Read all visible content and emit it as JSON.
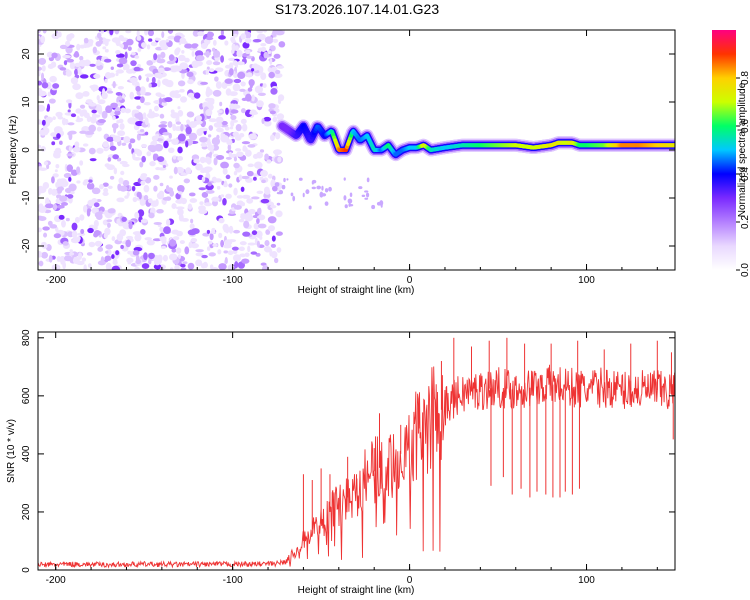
{
  "title": "S173.2026.107.14.01.G23",
  "chart_data": [
    {
      "type": "heatmap",
      "xlabel": "Height of straight line (km)",
      "ylabel": "Frequency (Hz)",
      "xlim": [
        -210,
        150
      ],
      "ylim": [
        -25,
        25
      ],
      "x_ticks": [
        -200,
        -100,
        0,
        100
      ],
      "x_tick_labels": [
        "-200",
        "-100",
        "0",
        "100"
      ],
      "y_ticks": [
        -20,
        -10,
        0,
        10,
        20
      ],
      "y_tick_labels": [
        "-20",
        "-10",
        "0",
        "10",
        "20"
      ],
      "noise_region": {
        "x_from": -210,
        "x_to": -72,
        "typical_amplitude": 0.05
      },
      "ridge": {
        "x": [
          -72,
          -68,
          -64,
          -60,
          -56,
          -52,
          -48,
          -44,
          -40,
          -36,
          -32,
          -28,
          -24,
          -20,
          -16,
          -12,
          -8,
          -4,
          0,
          4,
          8,
          12,
          20,
          30,
          40,
          50,
          60,
          70,
          80,
          84,
          88,
          92,
          96,
          100,
          110,
          120,
          130,
          140,
          150
        ],
        "frequency": [
          5,
          4,
          3,
          5,
          2,
          5,
          3,
          4,
          0,
          0,
          4,
          2,
          3,
          0,
          0,
          1,
          -1,
          0,
          0.5,
          0.5,
          1,
          0,
          0.5,
          1,
          1,
          1,
          1,
          0.5,
          1,
          1.5,
          1.5,
          1.5,
          1,
          1,
          1,
          1,
          1,
          1,
          1
        ],
        "amplitude": [
          0.3,
          0.3,
          0.35,
          0.4,
          0.35,
          0.45,
          0.4,
          0.55,
          0.85,
          0.9,
          0.5,
          0.45,
          0.5,
          0.55,
          0.45,
          0.6,
          0.45,
          0.45,
          0.5,
          0.5,
          0.75,
          0.55,
          0.5,
          0.55,
          0.6,
          0.65,
          0.7,
          0.7,
          0.75,
          0.75,
          0.7,
          0.75,
          0.6,
          0.6,
          0.65,
          0.85,
          0.85,
          0.8,
          0.75
        ]
      },
      "colorbar": {
        "label": "Normalized spectral amplitude",
        "ticks": [
          0.0,
          0.2,
          0.4,
          0.6,
          0.8
        ],
        "tick_labels": [
          "0.0",
          "0.2",
          "0.4",
          "0.6",
          "0.8"
        ],
        "range": [
          0,
          1
        ],
        "colormap": [
          "#ffffff",
          "#e9d8ff",
          "#b480ff",
          "#7a2aff",
          "#0000ff",
          "#00c8ff",
          "#00ff66",
          "#ccff00",
          "#ffd000",
          "#ff3300",
          "#ff0080"
        ]
      }
    },
    {
      "type": "line",
      "xlabel": "Height of straight line (km)",
      "ylabel": "SNR (10 * v/v)",
      "xlim": [
        -210,
        150
      ],
      "ylim": [
        0,
        820
      ],
      "x_ticks": [
        -200,
        -100,
        0,
        100
      ],
      "x_tick_labels": [
        "-200",
        "-100",
        "0",
        "100"
      ],
      "y_ticks": [
        0,
        200,
        400,
        600,
        800
      ],
      "y_tick_labels": [
        "0",
        "200",
        "400",
        "600",
        "800"
      ],
      "series": [
        {
          "name": "SNR",
          "color": "#ee3333",
          "x": [
            -210,
            -190,
            -170,
            -150,
            -130,
            -110,
            -90,
            -75,
            -70,
            -65,
            -60,
            -55,
            -50,
            -45,
            -40,
            -35,
            -30,
            -25,
            -20,
            -15,
            -10,
            -5,
            0,
            5,
            10,
            15,
            20,
            25,
            30,
            40,
            50,
            60,
            70,
            80,
            90,
            100,
            110,
            120,
            130,
            140,
            150
          ],
          "values": [
            18,
            20,
            18,
            20,
            19,
            20,
            20,
            22,
            30,
            60,
            100,
            140,
            160,
            200,
            230,
            250,
            280,
            320,
            340,
            360,
            380,
            400,
            430,
            470,
            500,
            540,
            560,
            590,
            610,
            620,
            630,
            620,
            630,
            640,
            630,
            620,
            630,
            620,
            620,
            620,
            610
          ],
          "spikes": [
            {
              "x": -60,
              "y": 330
            },
            {
              "x": -55,
              "y": 310
            },
            {
              "x": -50,
              "y": 350
            },
            {
              "x": -45,
              "y": 330
            },
            {
              "x": -35,
              "y": 390
            },
            {
              "x": -30,
              "y": 330
            },
            {
              "x": -20,
              "y": 420
            },
            {
              "x": -17,
              "y": 540
            },
            {
              "x": -5,
              "y": 500
            },
            {
              "x": 5,
              "y": 560
            },
            {
              "x": 18,
              "y": 720
            },
            {
              "x": 25,
              "y": 800
            },
            {
              "x": 35,
              "y": 770
            },
            {
              "x": 45,
              "y": 790
            },
            {
              "x": 55,
              "y": 800
            },
            {
              "x": 65,
              "y": 780
            },
            {
              "x": 80,
              "y": 780
            },
            {
              "x": 95,
              "y": 790
            },
            {
              "x": 110,
              "y": 760
            },
            {
              "x": 125,
              "y": 780
            },
            {
              "x": 140,
              "y": 790
            },
            {
              "x": 148,
              "y": 750
            }
          ],
          "dips": [
            {
              "x": 46,
              "y": 290
            },
            {
              "x": 53,
              "y": 320
            },
            {
              "x": 58,
              "y": 260
            },
            {
              "x": 63,
              "y": 280
            },
            {
              "x": 68,
              "y": 250
            },
            {
              "x": 72,
              "y": 270
            },
            {
              "x": 77,
              "y": 260
            },
            {
              "x": 81,
              "y": 250
            },
            {
              "x": 85,
              "y": 250
            },
            {
              "x": 88,
              "y": 270
            },
            {
              "x": 92,
              "y": 260
            },
            {
              "x": 96,
              "y": 280
            },
            {
              "x": 149,
              "y": 450
            }
          ]
        }
      ]
    }
  ]
}
